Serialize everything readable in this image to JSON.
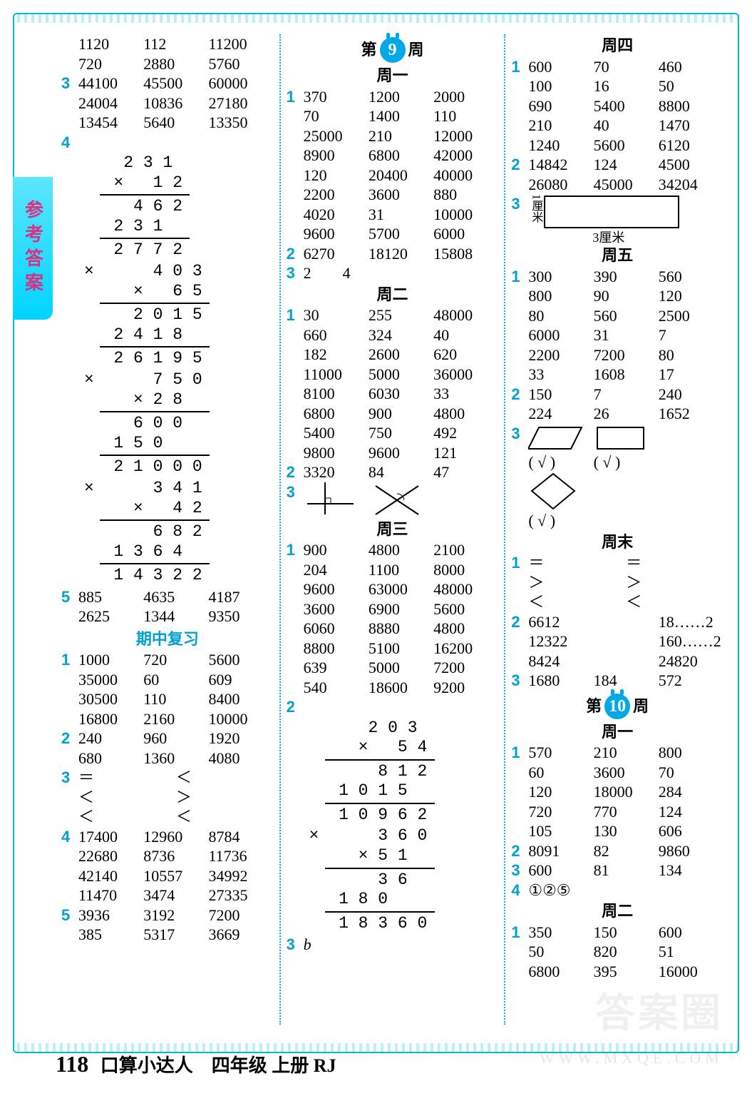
{
  "page_number": "118",
  "footer_text": "口算小达人　四年级 上册 RJ",
  "side_tab": "参考答案",
  "watermark_big": "答案圈",
  "watermark_small": "WWW.MXQE.COM",
  "colors": {
    "accent": "#00a0d0",
    "border": "#00bcd4",
    "tab_grad_top": "#5de6ff",
    "tab_grad_bot": "#00d4ff",
    "tab_text": "#d63384"
  },
  "col1": {
    "block_top": [
      [
        "1120",
        "112",
        "11200"
      ],
      [
        "720",
        "2880",
        "5760"
      ]
    ],
    "q3": [
      [
        "44100",
        "45500",
        "60000"
      ],
      [
        "24004",
        "10836",
        "27180"
      ],
      [
        "13454",
        "5640",
        "13350"
      ]
    ],
    "q4_mults": [
      {
        "w": 9,
        "top": "    2 3 1",
        "op": "  ×   1 2",
        "parts": [
          "    4 6 2",
          "  2 3 1  "
        ],
        "ans": "  2 7 7 2"
      },
      {
        "w": 11,
        "top": "      4 0 3",
        "op": "    ×   6 5",
        "parts": [
          "    2 0 1 5",
          "  2 4 1 8  "
        ],
        "ans": "  2 6 1 9 5"
      },
      {
        "w": 11,
        "top": "      7 5 0",
        "op": "    × 2 8  ",
        "parts": [
          "    6 0 0  ",
          "  1 5 0    "
        ],
        "ans": "  2 1 0 0 0"
      },
      {
        "w": 11,
        "top": "      3 4 1",
        "op": "    ×   4 2",
        "parts": [
          "      6 8 2",
          "  1 3 6 4  "
        ],
        "ans": "  1 4 3 2 2"
      }
    ],
    "q5": [
      [
        "885",
        "4635",
        "4187"
      ],
      [
        "2625",
        "1344",
        "9350"
      ]
    ],
    "mid_title": "期中复习",
    "mq1": [
      [
        "1000",
        "720",
        "5600"
      ],
      [
        "35000",
        "60",
        "609"
      ],
      [
        "30500",
        "110",
        "8400"
      ],
      [
        "16800",
        "2160",
        "10000"
      ]
    ],
    "mq2": [
      [
        "240",
        "960",
        "1920"
      ],
      [
        "680",
        "1360",
        "4080"
      ]
    ],
    "mq3": {
      "left": [
        "＝",
        "＜",
        "＜"
      ],
      "right": [
        "＜",
        "＞",
        "＜"
      ]
    },
    "mq4": [
      [
        "17400",
        "12960",
        "8784"
      ],
      [
        "22680",
        "8736",
        "11736"
      ],
      [
        "42140",
        "10557",
        "34992"
      ],
      [
        "11470",
        "3474",
        "27335"
      ]
    ],
    "mq5": [
      [
        "3936",
        "3192",
        "7200"
      ],
      [
        "385",
        "5317",
        "3669"
      ]
    ]
  },
  "col2": {
    "week_label_pre": "第",
    "week_num": "9",
    "week_label_post": "周",
    "d1_title": "周一",
    "d1_q1": [
      [
        "370",
        "1200",
        "2000"
      ],
      [
        "70",
        "1400",
        "110"
      ],
      [
        "25000",
        "210",
        "12000"
      ],
      [
        "8900",
        "6800",
        "42000"
      ],
      [
        "120",
        "20400",
        "40000"
      ],
      [
        "2200",
        "3600",
        "880"
      ],
      [
        "4020",
        "31",
        "10000"
      ],
      [
        "9600",
        "5700",
        "6000"
      ]
    ],
    "d1_q2": [
      [
        "6270",
        "18120",
        "15808"
      ]
    ],
    "d1_q3": "2　　4",
    "d2_title": "周二",
    "d2_q1": [
      [
        "30",
        "255",
        "48000"
      ],
      [
        "660",
        "324",
        "40"
      ],
      [
        "182",
        "2600",
        "620"
      ],
      [
        "11000",
        "5000",
        "36000"
      ],
      [
        "8100",
        "6030",
        "33"
      ],
      [
        "6800",
        "900",
        "4800"
      ],
      [
        "5400",
        "750",
        "492"
      ],
      [
        "9800",
        "9600",
        "121"
      ]
    ],
    "d2_q2": [
      [
        "3320",
        "84",
        "47"
      ]
    ],
    "d3_title": "周三",
    "d3_q1": [
      [
        "900",
        "4800",
        "2100"
      ],
      [
        "204",
        "1100",
        "8000"
      ],
      [
        "9600",
        "63000",
        "48000"
      ],
      [
        "3600",
        "6900",
        "5600"
      ],
      [
        "6060",
        "8880",
        "4800"
      ],
      [
        "8800",
        "5100",
        "16200"
      ],
      [
        "639",
        "5000",
        "7200"
      ],
      [
        "540",
        "18600",
        "9200"
      ]
    ],
    "d3_q2_mults": [
      {
        "w": 11,
        "top": "      2 0 3",
        "op": "    ×   5 4",
        "parts": [
          "      8 1 2",
          "  1 0 1 5  "
        ],
        "ans": "  1 0 9 6 2"
      },
      {
        "w": 11,
        "top": "      3 6 0",
        "op": "    × 5 1  ",
        "parts": [
          "      3 6  ",
          "  1 8 0    "
        ],
        "ans": "  1 8 3 6 0"
      }
    ],
    "d3_q3": "b"
  },
  "col3": {
    "d4_title": "周四",
    "d4_q1": [
      [
        "600",
        "70",
        "460"
      ],
      [
        "100",
        "16",
        "50"
      ],
      [
        "690",
        "5400",
        "8800"
      ],
      [
        "210",
        "40",
        "1470"
      ],
      [
        "1240",
        "5600",
        "6120"
      ]
    ],
    "d4_q2": [
      [
        "14842",
        "124",
        "4500"
      ],
      [
        "26080",
        "45000",
        "34204"
      ]
    ],
    "d4_q3_caption_left": "1厘米",
    "d4_q3_caption_bottom": "3厘米",
    "d5_title": "周五",
    "d5_q1": [
      [
        "300",
        "390",
        "560"
      ],
      [
        "800",
        "90",
        "120"
      ],
      [
        "80",
        "560",
        "2500"
      ],
      [
        "6000",
        "31",
        "7"
      ],
      [
        "2200",
        "7200",
        "80"
      ],
      [
        "33",
        "1608",
        "17"
      ]
    ],
    "d5_q2": [
      [
        "150",
        "7",
        "240"
      ],
      [
        "224",
        "26",
        "1652"
      ]
    ],
    "d5_q3_marks": [
      "( √ )",
      "( √ )",
      "( √ )"
    ],
    "d6_title": "周末",
    "d6_q1": {
      "left": [
        "＝",
        "＞",
        "＜"
      ],
      "right": [
        "＝",
        "＞",
        "＜"
      ]
    },
    "d6_q2": [
      [
        "6612",
        "",
        "18……2"
      ],
      [
        "12322",
        "",
        "160……2"
      ],
      [
        "8424",
        "",
        "24820"
      ]
    ],
    "d6_q3": [
      [
        "1680",
        "184",
        "572"
      ]
    ],
    "week2_label_pre": "第",
    "week2_num": "10",
    "week2_label_post": "周",
    "w2d1_title": "周一",
    "w2d1_q1": [
      [
        "570",
        "210",
        "800"
      ],
      [
        "60",
        "3600",
        "70"
      ],
      [
        "120",
        "18000",
        "284"
      ],
      [
        "720",
        "770",
        "124"
      ],
      [
        "105",
        "130",
        "606"
      ]
    ],
    "w2d1_q2": [
      [
        "8091",
        "82",
        "9860"
      ]
    ],
    "w2d1_q3": [
      [
        "600",
        "81",
        "134"
      ]
    ],
    "w2d1_q4": "①②⑤",
    "w2d2_title": "周二",
    "w2d2_q1": [
      [
        "350",
        "150",
        "600"
      ],
      [
        "50",
        "820",
        "51"
      ],
      [
        "6800",
        "395",
        "16000"
      ]
    ]
  }
}
